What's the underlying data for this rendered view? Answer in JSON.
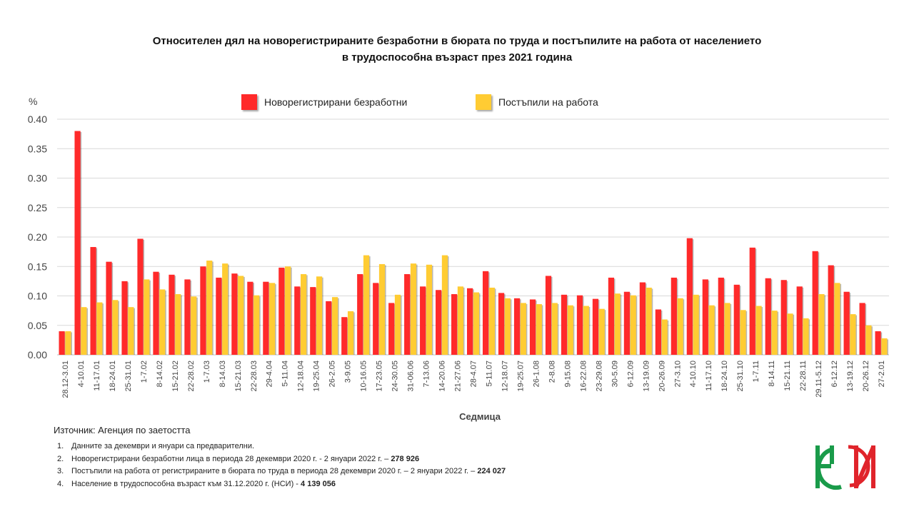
{
  "title_line1": "Относителен дял на новорегистрираните безработни в бюрата по труда и постъпилите на работа от населението",
  "title_line2": "в трудоспособна възраст през 2021 година",
  "y_unit": "%",
  "legend": [
    {
      "label": "Новорегистрирани безработни",
      "color": "#ff2a2a"
    },
    {
      "label": "Постъпили на работа",
      "color": "#ffcc33"
    }
  ],
  "x_title": "Седмица",
  "source": "Източник: Агенция по заетостта",
  "notes": [
    {
      "num": "1.",
      "text": "Данните за декември  и януари са предварителни.",
      "bold": ""
    },
    {
      "num": "2.",
      "text": "Новорегистрирани безработни лица в периода  28 декември  2020 г. - 2 януари 2022 г. – ",
      "bold": "278 926"
    },
    {
      "num": "3.",
      "text": "Постъпили на работа от регистрираните в бюрата по труда в периода  28 декември  2020 г. – 2 януари 2022 г. – ",
      "bold": "224 027"
    },
    {
      "num": "4.",
      "text": "Население в трудоспособна възраст към 31.12.2020 г. (НСИ)  - ",
      "bold": "4 139 056"
    }
  ],
  "chart_data": {
    "type": "bar",
    "title": "Относителен дял на новорегистрираните безработни в бюрата по труда и постъпилите на работа от населението в трудоспособна възраст през 2021 година",
    "xlabel": "Седмица",
    "ylabel": "%",
    "ylim": [
      0,
      0.4
    ],
    "yticks": [
      "0.00",
      "0.05",
      "0.10",
      "0.15",
      "0.20",
      "0.25",
      "0.30",
      "0.35",
      "0.40"
    ],
    "grid": true,
    "legend_position": "top",
    "categories": [
      "28.12-3.01",
      "4-10.01",
      "11-17.01",
      "18-24.01",
      "25-31.01",
      "1-7.02",
      "8-14.02",
      "15-21.02",
      "22-28.02",
      "1-7.03",
      "8-14.03",
      "15-21.03",
      "22-28.03",
      "29-4.04",
      "5-11.04",
      "12-18.04",
      "19-25.04",
      "26-2.05",
      "3-9.05",
      "10-16.05",
      "17-23.05",
      "24-30.05",
      "31-06.06",
      "7-13.06",
      "14-20.06",
      "21-27.06",
      "28-4.07",
      "5-11.07",
      "12-18.07",
      "19-25.07",
      "26-1.08",
      "2-8.08",
      "9-15.08",
      "16-22.08",
      "23-29.08",
      "30-5.09",
      "6-12.09",
      "13-19.09",
      "20-26.09",
      "27-3.10",
      "4-10.10",
      "11-17.10",
      "18-24.10",
      "25-31.10",
      "1-7.11",
      "8-14.11",
      "15-21.11",
      "22-28.11",
      "29.11-5.12",
      "6-12.12",
      "13-19.12",
      "20-26.12",
      "27-2.01"
    ],
    "series": [
      {
        "name": "Новорегистрирани безработни",
        "color": "#ff2a2a",
        "values": [
          0.04,
          0.38,
          0.183,
          0.158,
          0.125,
          0.197,
          0.141,
          0.136,
          0.128,
          0.15,
          0.131,
          0.138,
          0.124,
          0.124,
          0.148,
          0.116,
          0.115,
          0.091,
          0.064,
          0.137,
          0.122,
          0.088,
          0.137,
          0.116,
          0.11,
          0.103,
          0.113,
          0.142,
          0.105,
          0.096,
          0.094,
          0.134,
          0.102,
          0.101,
          0.095,
          0.131,
          0.107,
          0.123,
          0.077,
          0.131,
          0.198,
          0.128,
          0.131,
          0.119,
          0.182,
          0.13,
          0.127,
          0.116,
          0.176,
          0.152,
          0.107,
          0.088,
          0.04
        ]
      },
      {
        "name": "Постъпили на работа",
        "color": "#ffcc33",
        "values": [
          0.04,
          0.081,
          0.089,
          0.093,
          0.081,
          0.128,
          0.111,
          0.103,
          0.099,
          0.16,
          0.155,
          0.134,
          0.101,
          0.122,
          0.15,
          0.137,
          0.133,
          0.098,
          0.074,
          0.169,
          0.154,
          0.102,
          0.155,
          0.153,
          0.169,
          0.116,
          0.106,
          0.114,
          0.096,
          0.088,
          0.086,
          0.088,
          0.084,
          0.083,
          0.078,
          0.104,
          0.101,
          0.114,
          0.06,
          0.096,
          0.102,
          0.084,
          0.088,
          0.076,
          0.083,
          0.075,
          0.07,
          0.062,
          0.103,
          0.122,
          0.069,
          0.05,
          0.028
        ]
      }
    ]
  }
}
